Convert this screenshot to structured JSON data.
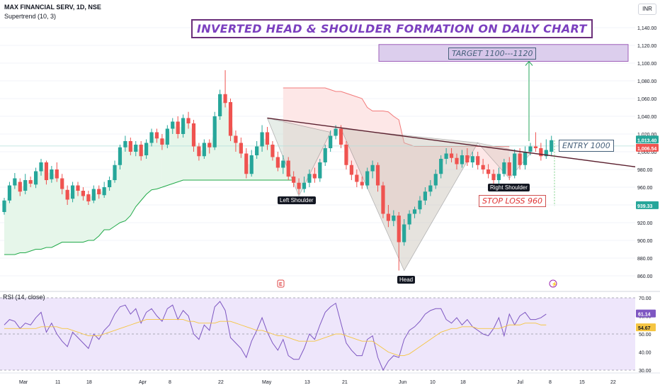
{
  "header": {
    "symbol_line": "MAX FINANCIAL SERV, 1D, NSE",
    "indicator_line": "Supertrend (10, 3)",
    "currency": "INR"
  },
  "annotations": {
    "title": "INVERTED HEAD & SHOULDER FORMATION ON DAILY CHART",
    "target": "TARGET 1100---1120",
    "entry": "ENTRY 1000",
    "stop_loss": "STOP LOSS 960",
    "left_shoulder": "Left Shoulder",
    "head": "Head",
    "right_shoulder": "Right Shoulder"
  },
  "rsi_panel": {
    "label": "RSI (14, close)"
  },
  "price_badges": {
    "last": "1,013.40",
    "line": "1,006.54",
    "low": "939.33"
  },
  "rsi_badges": {
    "rsi": "61.14",
    "ma": "54.67"
  },
  "chart_data": [
    {
      "type": "candlestick",
      "title": "MAX FINANCIAL SERV, 1D, NSE",
      "ylim": [
        845,
        1155
      ],
      "y_ticks": [
        860,
        880,
        900,
        920,
        940,
        960,
        980,
        1000,
        1020,
        1040,
        1060,
        1080,
        1100,
        1120,
        1140
      ],
      "x_labels": [
        "Mar",
        "11",
        "18",
        "Apr",
        "8",
        "22",
        "May",
        "13",
        "21",
        "Jun",
        "10",
        "18",
        "Jul",
        "8",
        "15",
        "22"
      ],
      "candles": [
        {
          "o": 932,
          "c": 945,
          "h": 948,
          "l": 929
        },
        {
          "o": 945,
          "c": 962,
          "h": 966,
          "l": 942
        },
        {
          "o": 962,
          "c": 970,
          "h": 976,
          "l": 958
        },
        {
          "o": 966,
          "c": 955,
          "h": 970,
          "l": 950
        },
        {
          "o": 956,
          "c": 968,
          "h": 975,
          "l": 952
        },
        {
          "o": 968,
          "c": 964,
          "h": 972,
          "l": 960
        },
        {
          "o": 963,
          "c": 978,
          "h": 982,
          "l": 959
        },
        {
          "o": 978,
          "c": 988,
          "h": 992,
          "l": 973
        },
        {
          "o": 988,
          "c": 968,
          "h": 990,
          "l": 963
        },
        {
          "o": 969,
          "c": 980,
          "h": 984,
          "l": 965
        },
        {
          "o": 980,
          "c": 970,
          "h": 988,
          "l": 966
        },
        {
          "o": 970,
          "c": 958,
          "h": 975,
          "l": 952
        },
        {
          "o": 957,
          "c": 946,
          "h": 962,
          "l": 940
        },
        {
          "o": 947,
          "c": 962,
          "h": 966,
          "l": 943
        },
        {
          "o": 962,
          "c": 956,
          "h": 966,
          "l": 950
        },
        {
          "o": 956,
          "c": 950,
          "h": 960,
          "l": 945
        },
        {
          "o": 952,
          "c": 944,
          "h": 956,
          "l": 940
        },
        {
          "o": 945,
          "c": 958,
          "h": 962,
          "l": 942
        },
        {
          "o": 958,
          "c": 952,
          "h": 962,
          "l": 947
        },
        {
          "o": 951,
          "c": 960,
          "h": 966,
          "l": 948
        },
        {
          "o": 960,
          "c": 968,
          "h": 972,
          "l": 956
        },
        {
          "o": 968,
          "c": 985,
          "h": 990,
          "l": 965
        },
        {
          "o": 985,
          "c": 1005,
          "h": 1008,
          "l": 980
        },
        {
          "o": 1005,
          "c": 1012,
          "h": 1018,
          "l": 1000
        },
        {
          "o": 1012,
          "c": 1000,
          "h": 1016,
          "l": 996
        },
        {
          "o": 1000,
          "c": 1008,
          "h": 1012,
          "l": 995
        },
        {
          "o": 1008,
          "c": 995,
          "h": 1012,
          "l": 990
        },
        {
          "o": 996,
          "c": 1010,
          "h": 1014,
          "l": 992
        },
        {
          "o": 1010,
          "c": 1022,
          "h": 1026,
          "l": 1006
        },
        {
          "o": 1022,
          "c": 1015,
          "h": 1026,
          "l": 1010
        },
        {
          "o": 1015,
          "c": 1008,
          "h": 1020,
          "l": 1002
        },
        {
          "o": 1008,
          "c": 1026,
          "h": 1030,
          "l": 1004
        },
        {
          "o": 1026,
          "c": 1034,
          "h": 1038,
          "l": 1020
        },
        {
          "o": 1034,
          "c": 1020,
          "h": 1040,
          "l": 1015
        },
        {
          "o": 1020,
          "c": 1038,
          "h": 1042,
          "l": 1016
        },
        {
          "o": 1038,
          "c": 1032,
          "h": 1045,
          "l": 1026
        },
        {
          "o": 1032,
          "c": 1006,
          "h": 1036,
          "l": 1000
        },
        {
          "o": 1006,
          "c": 995,
          "h": 1010,
          "l": 990
        },
        {
          "o": 995,
          "c": 1010,
          "h": 1014,
          "l": 992
        },
        {
          "o": 1010,
          "c": 1005,
          "h": 1014,
          "l": 998
        },
        {
          "o": 1005,
          "c": 1040,
          "h": 1045,
          "l": 1002
        },
        {
          "o": 1040,
          "c": 1065,
          "h": 1070,
          "l": 1036
        },
        {
          "o": 1065,
          "c": 1055,
          "h": 1092,
          "l": 1050
        },
        {
          "o": 1056,
          "c": 1018,
          "h": 1060,
          "l": 1012
        },
        {
          "o": 1018,
          "c": 1010,
          "h": 1024,
          "l": 1000
        },
        {
          "o": 1010,
          "c": 998,
          "h": 1016,
          "l": 993
        },
        {
          "o": 998,
          "c": 975,
          "h": 1004,
          "l": 970
        },
        {
          "o": 975,
          "c": 996,
          "h": 1002,
          "l": 972
        },
        {
          "o": 996,
          "c": 1006,
          "h": 1012,
          "l": 992
        },
        {
          "o": 1006,
          "c": 1022,
          "h": 1030,
          "l": 1000
        },
        {
          "o": 1022,
          "c": 1008,
          "h": 1028,
          "l": 1002
        },
        {
          "o": 1008,
          "c": 994,
          "h": 1012,
          "l": 990
        },
        {
          "o": 994,
          "c": 982,
          "h": 1000,
          "l": 978
        },
        {
          "o": 982,
          "c": 990,
          "h": 996,
          "l": 975
        },
        {
          "o": 990,
          "c": 972,
          "h": 994,
          "l": 968
        },
        {
          "o": 972,
          "c": 965,
          "h": 978,
          "l": 960
        },
        {
          "o": 965,
          "c": 958,
          "h": 970,
          "l": 952
        },
        {
          "o": 958,
          "c": 965,
          "h": 972,
          "l": 954
        },
        {
          "o": 965,
          "c": 975,
          "h": 980,
          "l": 960
        },
        {
          "o": 975,
          "c": 970,
          "h": 982,
          "l": 965
        },
        {
          "o": 970,
          "c": 988,
          "h": 992,
          "l": 966
        },
        {
          "o": 988,
          "c": 1004,
          "h": 1008,
          "l": 984
        },
        {
          "o": 1004,
          "c": 1018,
          "h": 1024,
          "l": 1000
        },
        {
          "o": 1018,
          "c": 1026,
          "h": 1030,
          "l": 1014
        },
        {
          "o": 1026,
          "c": 1008,
          "h": 1030,
          "l": 1004
        },
        {
          "o": 1008,
          "c": 985,
          "h": 1012,
          "l": 980
        },
        {
          "o": 985,
          "c": 974,
          "h": 990,
          "l": 968
        },
        {
          "o": 974,
          "c": 966,
          "h": 980,
          "l": 960
        },
        {
          "o": 966,
          "c": 962,
          "h": 972,
          "l": 958
        },
        {
          "o": 962,
          "c": 978,
          "h": 982,
          "l": 958
        },
        {
          "o": 978,
          "c": 985,
          "h": 990,
          "l": 970
        },
        {
          "o": 985,
          "c": 962,
          "h": 988,
          "l": 955
        },
        {
          "o": 962,
          "c": 930,
          "h": 966,
          "l": 925
        },
        {
          "o": 930,
          "c": 922,
          "h": 940,
          "l": 915
        },
        {
          "o": 922,
          "c": 928,
          "h": 934,
          "l": 916
        },
        {
          "o": 928,
          "c": 898,
          "h": 932,
          "l": 866
        },
        {
          "o": 898,
          "c": 918,
          "h": 924,
          "l": 894
        },
        {
          "o": 918,
          "c": 930,
          "h": 934,
          "l": 912
        },
        {
          "o": 930,
          "c": 935,
          "h": 938,
          "l": 925
        },
        {
          "o": 935,
          "c": 945,
          "h": 950,
          "l": 930
        },
        {
          "o": 945,
          "c": 955,
          "h": 960,
          "l": 940
        },
        {
          "o": 955,
          "c": 962,
          "h": 968,
          "l": 950
        },
        {
          "o": 962,
          "c": 975,
          "h": 980,
          "l": 958
        },
        {
          "o": 975,
          "c": 992,
          "h": 996,
          "l": 970
        },
        {
          "o": 992,
          "c": 998,
          "h": 1004,
          "l": 986
        },
        {
          "o": 998,
          "c": 993,
          "h": 1004,
          "l": 988
        },
        {
          "o": 993,
          "c": 986,
          "h": 998,
          "l": 980
        },
        {
          "o": 986,
          "c": 996,
          "h": 1002,
          "l": 982
        },
        {
          "o": 996,
          "c": 988,
          "h": 1004,
          "l": 984
        },
        {
          "o": 988,
          "c": 995,
          "h": 1000,
          "l": 982
        },
        {
          "o": 995,
          "c": 985,
          "h": 1000,
          "l": 980
        },
        {
          "o": 985,
          "c": 980,
          "h": 992,
          "l": 975
        },
        {
          "o": 980,
          "c": 975,
          "h": 986,
          "l": 970
        },
        {
          "o": 975,
          "c": 968,
          "h": 980,
          "l": 963
        },
        {
          "o": 968,
          "c": 975,
          "h": 982,
          "l": 963
        },
        {
          "o": 975,
          "c": 988,
          "h": 992,
          "l": 972
        },
        {
          "o": 988,
          "c": 973,
          "h": 994,
          "l": 968
        },
        {
          "o": 973,
          "c": 998,
          "h": 1003,
          "l": 970
        },
        {
          "o": 998,
          "c": 985,
          "h": 1004,
          "l": 980
        },
        {
          "o": 985,
          "c": 1000,
          "h": 1006,
          "l": 980
        },
        {
          "o": 1000,
          "c": 1006,
          "h": 1010,
          "l": 996
        },
        {
          "o": 1006,
          "c": 1004,
          "h": 1022,
          "l": 1000
        },
        {
          "o": 1004,
          "c": 995,
          "h": 1010,
          "l": 990
        },
        {
          "o": 995,
          "c": 1002,
          "h": 1014,
          "l": 992
        },
        {
          "o": 1000,
          "c": 1013,
          "h": 1018,
          "l": 995
        }
      ],
      "supertrend": {
        "up_segments": [
          {
            "from": 0,
            "to": 30,
            "values": [
              884,
              884,
              884,
              886,
              886,
              888,
              890,
              890,
              892,
              892,
              895,
              898,
              898,
              898,
              898,
              898,
              900,
              900,
              905,
              912,
              912,
              916,
              920,
              922,
              928,
              938,
              945,
              952,
              957,
              958,
              960
            ]
          },
          {
            "from": 30,
            "to": 55,
            "values": [
              960,
              962,
              964,
              966,
              968,
              968,
              968,
              968,
              968,
              968,
              968,
              968,
              968,
              968,
              968,
              968,
              968,
              968,
              968,
              968,
              968,
              968,
              968,
              968,
              968,
              968
            ]
          }
        ],
        "down_segments": [
          {
            "from": 53,
            "to": 96,
            "values": [
              1072,
              1072,
              1072,
              1072,
              1072,
              1072,
              1072,
              1072,
              1072,
              1070,
              1068,
              1068,
              1066,
              1064,
              1062,
              1060,
              1050,
              1046,
              1046,
              1046,
              1045,
              1040,
              1036,
              1010,
              1008,
              1006,
              1006,
              1006,
              1006,
              1006,
              1006,
              1006,
              1006,
              1006,
              1006,
              1006,
              1006,
              1006,
              1006,
              1006,
              1006,
              1006,
              1006,
              1006
            ]
          }
        ]
      }
    },
    {
      "type": "line",
      "title": "RSI (14, close)",
      "ylim": [
        30,
        70
      ],
      "y_ticks": [
        30,
        40,
        50,
        60,
        70
      ],
      "series": [
        {
          "name": "RSI",
          "values": [
            55,
            58,
            57,
            53,
            56,
            55,
            59,
            62,
            51,
            56,
            50,
            46,
            43,
            51,
            48,
            45,
            42,
            50,
            47,
            52,
            55,
            61,
            65,
            66,
            61,
            64,
            56,
            62,
            64,
            60,
            57,
            64,
            66,
            58,
            63,
            60,
            50,
            47,
            55,
            52,
            65,
            68,
            63,
            48,
            45,
            42,
            37,
            46,
            52,
            59,
            51,
            45,
            41,
            47,
            38,
            36,
            36,
            42,
            50,
            47,
            55,
            62,
            65,
            67,
            56,
            45,
            41,
            38,
            38,
            47,
            49,
            37,
            30,
            35,
            38,
            37,
            47,
            52,
            54,
            57,
            61,
            63,
            64,
            64,
            58,
            56,
            59,
            55,
            58,
            54,
            52,
            50,
            49,
            53,
            59,
            49,
            61,
            55,
            60,
            62,
            58,
            58,
            59,
            61
          ]
        },
        {
          "name": "MA",
          "values": [
            53,
            53,
            53,
            53,
            53,
            53,
            53,
            54,
            54,
            54,
            54,
            53,
            53,
            52,
            51,
            50,
            49,
            49,
            49,
            50,
            51,
            52,
            53,
            54,
            55,
            56,
            57,
            58,
            58,
            58,
            58,
            58,
            58,
            58,
            58,
            57,
            57,
            56,
            56,
            56,
            56,
            57,
            57,
            57,
            56,
            55,
            54,
            53,
            52,
            52,
            51,
            50,
            49,
            49,
            48,
            47,
            46,
            46,
            46,
            46,
            47,
            48,
            49,
            50,
            50,
            49,
            48,
            47,
            46,
            46,
            46,
            44,
            42,
            40,
            39,
            38,
            38,
            39,
            41,
            43,
            45,
            47,
            49,
            51,
            52,
            53,
            53,
            54,
            54,
            54,
            53,
            53,
            53,
            53,
            53,
            54,
            55,
            55,
            55,
            56,
            56,
            56,
            55,
            55
          ]
        }
      ]
    }
  ],
  "colors": {
    "up": "#26a69a",
    "down": "#ef5350",
    "supertrend_up": "#22aa4a",
    "supertrend_down": "#f27a7a",
    "neckline": "#5a1f2e",
    "title_border": "#6b2f7a",
    "title_text": "#7b3fbf",
    "rsi_line": "#7e57c2",
    "rsi_ma": "#f5c542",
    "target_box": "#d7c6ea"
  }
}
